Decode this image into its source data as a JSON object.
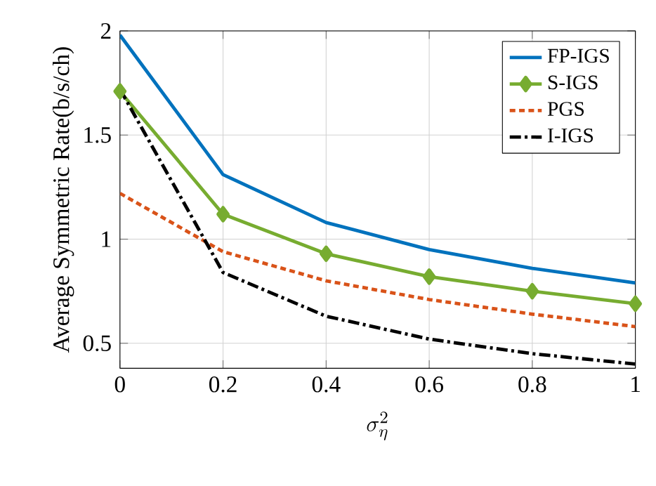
{
  "chart_data": {
    "type": "line",
    "xlabel": "\\sigma_\\eta^2",
    "ylabel": "Average Symmetric Rate(b/s/ch)",
    "x": [
      0,
      0.2,
      0.4,
      0.6,
      0.8,
      1
    ],
    "series": [
      {
        "name": "FP-IGS",
        "color": "#0072bd",
        "values": [
          1.98,
          1.31,
          1.08,
          0.95,
          0.86,
          0.79
        ],
        "marker": "none",
        "line_style": "solid"
      },
      {
        "name": "S-IGS",
        "color": "#77ac30",
        "values": [
          1.71,
          1.12,
          0.93,
          0.82,
          0.75,
          0.69
        ],
        "marker": "diamond",
        "line_style": "solid"
      },
      {
        "name": "PGS",
        "color": "#d95319",
        "values": [
          1.22,
          0.94,
          0.8,
          0.71,
          0.64,
          0.58
        ],
        "marker": "none",
        "line_style": "dashed"
      },
      {
        "name": "I-IGS",
        "color": "#000000",
        "values": [
          1.72,
          0.84,
          0.63,
          0.52,
          0.45,
          0.4
        ],
        "marker": "none",
        "line_style": "dashdot"
      }
    ],
    "xlim": [
      0,
      1
    ],
    "ylim": [
      0.38,
      2
    ],
    "xticks": [
      0,
      0.2,
      0.4,
      0.6,
      0.8,
      1
    ],
    "yticks": [
      0.5,
      1,
      1.5,
      2
    ],
    "grid": true,
    "legend": "top right"
  }
}
